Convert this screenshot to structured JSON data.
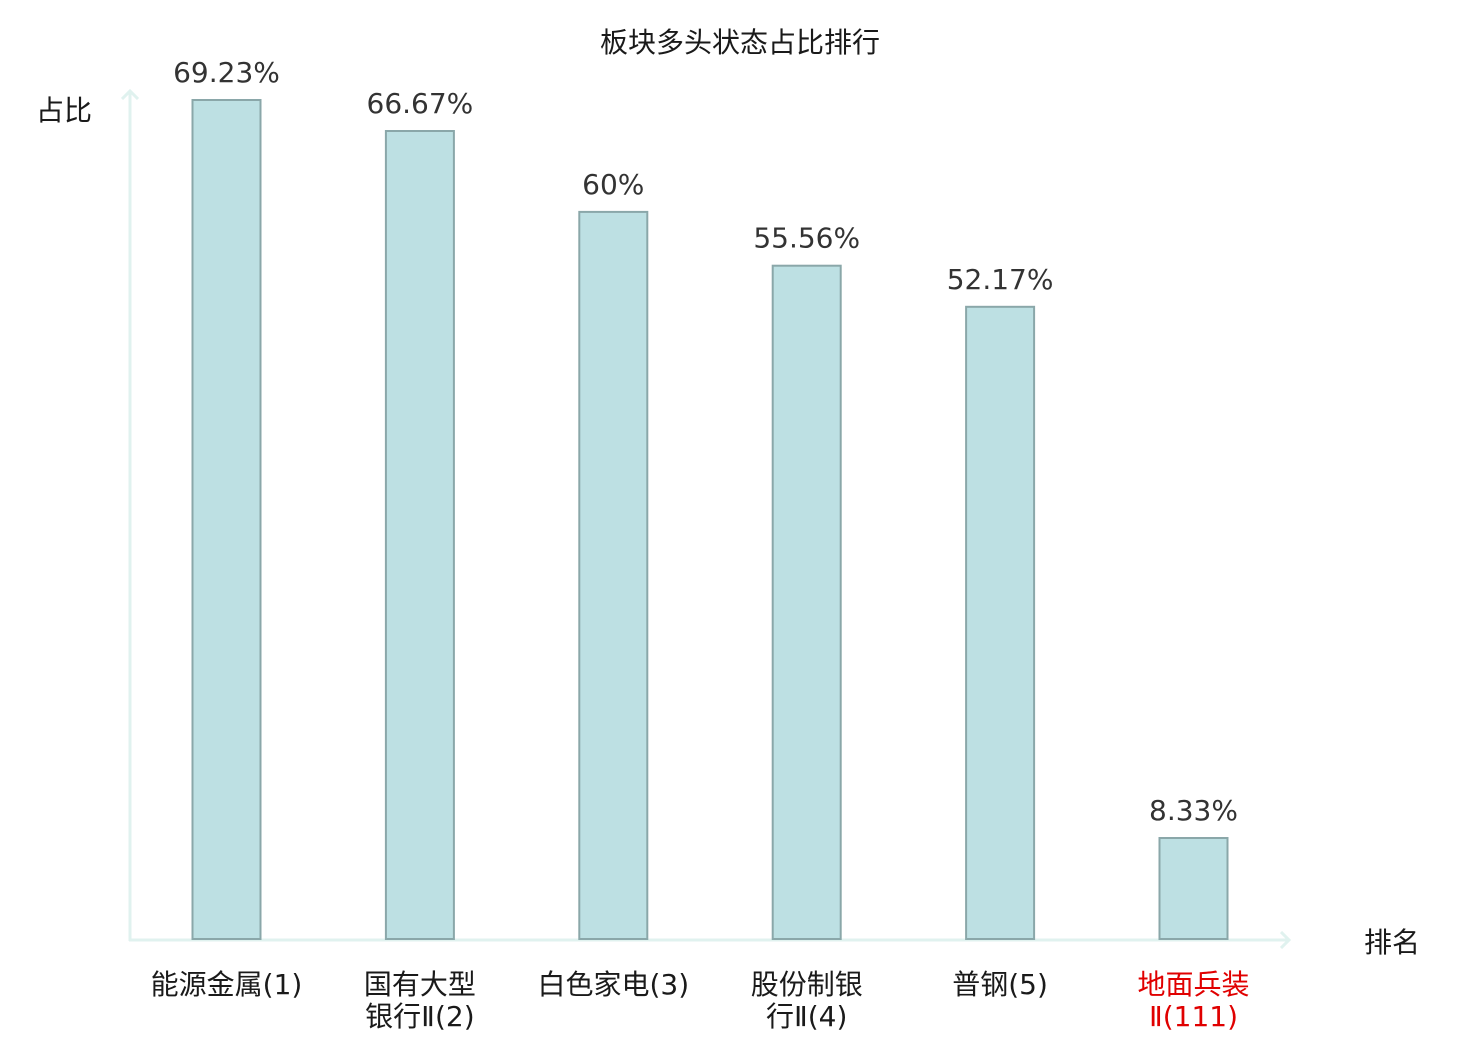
{
  "chart_data": {
    "type": "bar",
    "title": "板块多头状态占比排行",
    "xlabel": "排名",
    "ylabel": "占比",
    "ylim": [
      0,
      75
    ],
    "grid": false,
    "legend": "none",
    "categories": [
      [
        "能源金属(1)"
      ],
      [
        "国有大型",
        "银行Ⅱ(2)"
      ],
      [
        "白色家电(3)"
      ],
      [
        "股份制银",
        "行Ⅱ(4)"
      ],
      [
        "普钢(5)"
      ],
      [
        "地面兵装",
        "Ⅱ(111)"
      ]
    ],
    "values": [
      69.23,
      66.67,
      60,
      55.56,
      52.17,
      8.33
    ],
    "value_labels": [
      "69.23%",
      "66.67%",
      "60%",
      "55.56%",
      "52.17%",
      "8.33%"
    ],
    "highlight_index": 5
  },
  "colors": {
    "bar_fill": "#bde0e3",
    "bar_stroke": "#8aa7a9",
    "axis": "#e0f2ef",
    "text": "#1a1a1a",
    "value_text": "#333333",
    "highlight_text": "#e00000"
  }
}
